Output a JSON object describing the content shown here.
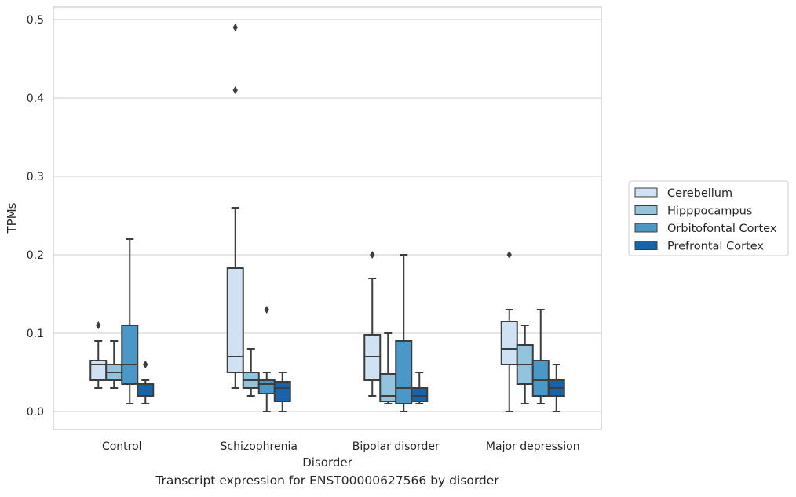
{
  "chart_data": {
    "type": "box",
    "caption": "Transcript expression for ENST00000627566 by disorder",
    "xlabel": "Disorder",
    "ylabel": "TPMs",
    "ylim": [
      -0.023,
      0.516
    ],
    "yticks": [
      0.0,
      0.1,
      0.2,
      0.3,
      0.4,
      0.5
    ],
    "ytick_labels": [
      "0.0",
      "0.1",
      "0.2",
      "0.3",
      "0.4",
      "0.5"
    ],
    "grid": true,
    "legend_position": "right",
    "categories": [
      "Control",
      "Schizophrenia",
      "Bipolar disorder",
      "Major depression"
    ],
    "series": [
      {
        "name": "Cerebellum",
        "color": "#cfe1f2",
        "boxes": [
          {
            "whisker_low": 0.03,
            "q1": 0.04,
            "median": 0.06,
            "q3": 0.065,
            "whisker_high": 0.09,
            "outliers": [
              0.11
            ]
          },
          {
            "whisker_low": 0.03,
            "q1": 0.05,
            "median": 0.07,
            "q3": 0.183,
            "whisker_high": 0.26,
            "outliers": [
              0.41,
              0.49
            ]
          },
          {
            "whisker_low": 0.02,
            "q1": 0.04,
            "median": 0.07,
            "q3": 0.098,
            "whisker_high": 0.17,
            "outliers": [
              0.2
            ]
          },
          {
            "whisker_low": 0.0,
            "q1": 0.06,
            "median": 0.08,
            "q3": 0.115,
            "whisker_high": 0.13,
            "outliers": [
              0.2
            ]
          }
        ]
      },
      {
        "name": "Hipppocampus",
        "color": "#93c4de",
        "boxes": [
          {
            "whisker_low": 0.03,
            "q1": 0.04,
            "median": 0.05,
            "q3": 0.06,
            "whisker_high": 0.09,
            "outliers": []
          },
          {
            "whisker_low": 0.02,
            "q1": 0.03,
            "median": 0.04,
            "q3": 0.05,
            "whisker_high": 0.08,
            "outliers": []
          },
          {
            "whisker_low": 0.01,
            "q1": 0.013,
            "median": 0.02,
            "q3": 0.048,
            "whisker_high": 0.1,
            "outliers": []
          },
          {
            "whisker_low": 0.01,
            "q1": 0.035,
            "median": 0.06,
            "q3": 0.085,
            "whisker_high": 0.11,
            "outliers": []
          }
        ]
      },
      {
        "name": "Orbitofontal Cortex",
        "color": "#4a98c9",
        "boxes": [
          {
            "whisker_low": 0.01,
            "q1": 0.035,
            "median": 0.06,
            "q3": 0.11,
            "whisker_high": 0.22,
            "outliers": []
          },
          {
            "whisker_low": 0.0,
            "q1": 0.023,
            "median": 0.035,
            "q3": 0.04,
            "whisker_high": 0.05,
            "outliers": [
              0.13
            ]
          },
          {
            "whisker_low": 0.0,
            "q1": 0.01,
            "median": 0.03,
            "q3": 0.09,
            "whisker_high": 0.2,
            "outliers": []
          },
          {
            "whisker_low": 0.01,
            "q1": 0.02,
            "median": 0.04,
            "q3": 0.065,
            "whisker_high": 0.13,
            "outliers": []
          }
        ]
      },
      {
        "name": "Prefrontal Cortex",
        "color": "#1764ab",
        "boxes": [
          {
            "whisker_low": 0.01,
            "q1": 0.02,
            "median": 0.035,
            "q3": 0.035,
            "whisker_high": 0.04,
            "outliers": [
              0.06
            ]
          },
          {
            "whisker_low": 0.0,
            "q1": 0.013,
            "median": 0.03,
            "q3": 0.038,
            "whisker_high": 0.05,
            "outliers": []
          },
          {
            "whisker_low": 0.01,
            "q1": 0.013,
            "median": 0.02,
            "q3": 0.03,
            "whisker_high": 0.05,
            "outliers": []
          },
          {
            "whisker_low": 0.0,
            "q1": 0.02,
            "median": 0.03,
            "q3": 0.04,
            "whisker_high": 0.06,
            "outliers": []
          }
        ]
      }
    ]
  }
}
